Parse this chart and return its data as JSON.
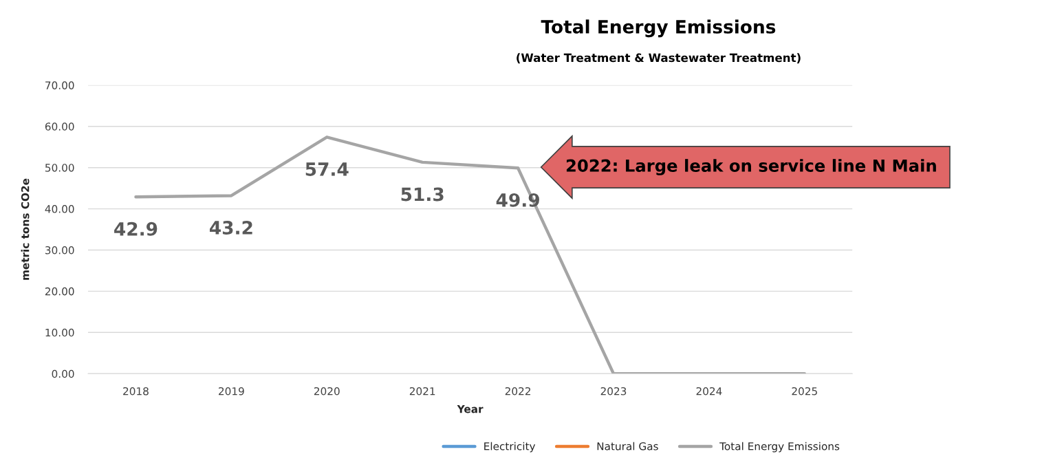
{
  "chart_data": {
    "type": "line",
    "title": "Total Energy Emissions",
    "subtitle": "(Water Treatment & Wastewater Treatment)",
    "xlabel": "Year",
    "ylabel": "metric tons CO2e",
    "categories": [
      "2018",
      "2019",
      "2020",
      "2021",
      "2022",
      "2023",
      "2024",
      "2025"
    ],
    "series": [
      {
        "name": "Electricity",
        "color": "#5b9bd5",
        "values": [
          null,
          null,
          null,
          null,
          null,
          null,
          null,
          null
        ]
      },
      {
        "name": "Natural Gas",
        "color": "#ed7d31",
        "values": [
          null,
          null,
          null,
          null,
          null,
          null,
          null,
          null
        ]
      },
      {
        "name": "Total Energy Emissions",
        "color": "#a5a5a5",
        "values": [
          42.9,
          43.2,
          57.4,
          51.3,
          49.9,
          0,
          0,
          0
        ],
        "value_labels": [
          "42.9",
          "43.2",
          "57.4",
          "51.3",
          "49.9",
          null,
          null,
          null
        ]
      }
    ],
    "ylim": [
      0,
      70
    ],
    "yticks": [
      {
        "value": 0,
        "label": "0.00"
      },
      {
        "value": 10,
        "label": "10.00"
      },
      {
        "value": 20,
        "label": "20.00"
      },
      {
        "value": 30,
        "label": "30.00"
      },
      {
        "value": 40,
        "label": "40.00"
      },
      {
        "value": 50,
        "label": "50.00"
      },
      {
        "value": 60,
        "label": "60.00"
      },
      {
        "value": 70,
        "label": "70.00"
      }
    ],
    "grid": "y",
    "legend": "bottom right",
    "marker": "none",
    "line_style": "solid",
    "annotations": [
      "2022: Large leak on service line N Main"
    ]
  }
}
